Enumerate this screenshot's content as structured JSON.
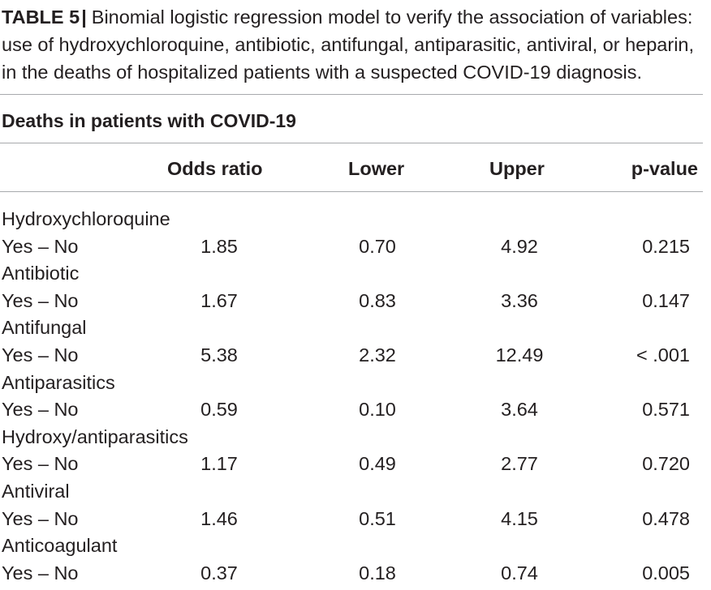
{
  "caption": {
    "label": "TABLE 5",
    "separator": "|",
    "text": "Binomial logistic regression model to verify the association of variables: use of hydroxychloroquine, antibiotic, antifungal, antiparasitic, antiviral, or heparin, in the deaths of hospitalized patients with a suspected COVID-19 diagnosis."
  },
  "table": {
    "subtitle": "Deaths in patients with COVID-19",
    "columns": {
      "odds_ratio": "Odds ratio",
      "lower": "Lower",
      "upper": "Upper",
      "p_value": "p-value"
    },
    "groups": [
      {
        "name": "Hydroxychloroquine",
        "contrast": "Yes – No",
        "odds_ratio": "1.85",
        "lower": "0.70",
        "upper": "4.92",
        "p_value": "0.215"
      },
      {
        "name": "Antibiotic",
        "contrast": "Yes – No",
        "odds_ratio": "1.67",
        "lower": "0.83",
        "upper": "3.36",
        "p_value": "0.147"
      },
      {
        "name": "Antifungal",
        "contrast": "Yes – No",
        "odds_ratio": "5.38",
        "lower": "2.32",
        "upper": "12.49",
        "p_value": "< .001"
      },
      {
        "name": "Antiparasitics",
        "contrast": "Yes – No",
        "odds_ratio": "0.59",
        "lower": "0.10",
        "upper": "3.64",
        "p_value": "0.571"
      },
      {
        "name": "Hydroxy/antiparasitics",
        "contrast": "Yes – No",
        "odds_ratio": "1.17",
        "lower": "0.49",
        "upper": "2.77",
        "p_value": "0.720"
      },
      {
        "name": "Antiviral",
        "contrast": "Yes – No",
        "odds_ratio": "1.46",
        "lower": "0.51",
        "upper": "4.15",
        "p_value": "0.478"
      },
      {
        "name": "Anticoagulant",
        "contrast": "Yes – No",
        "odds_ratio": "0.37",
        "lower": "0.18",
        "upper": "0.74",
        "p_value": "0.005"
      }
    ]
  }
}
